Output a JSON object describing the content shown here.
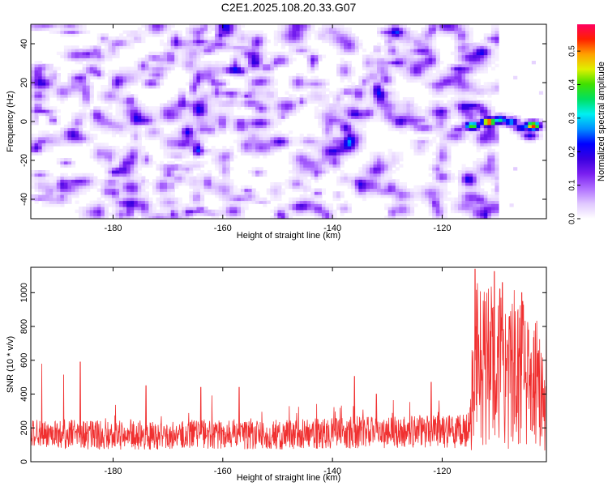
{
  "title": "C2E1.2025.108.20.33.G07",
  "chart_data": [
    {
      "type": "heatmap",
      "xlabel": "Height of straight line (km)",
      "ylabel": "Frequency (Hz)",
      "colorbar_label": "Normalized spectral amplitude",
      "xlim": [
        -195,
        -101
      ],
      "ylim": [
        -50,
        50
      ],
      "xticks": [
        -180,
        -160,
        -140,
        -120
      ],
      "yticks": [
        -40,
        -20,
        0,
        20,
        40
      ],
      "colorbar_range": [
        0.0,
        0.58
      ],
      "colorbar_ticks": [
        "0.0",
        "0.1",
        "0.2",
        "0.3",
        "0.4",
        "0.5"
      ],
      "colorscale": [
        "#ffffff",
        "#e0c8ff",
        "#b070ff",
        "#7a1ff0",
        "#3a00e0",
        "#0000ff",
        "#0090ff",
        "#00f0f0",
        "#00e060",
        "#40e000",
        "#e0f000",
        "#ffa000",
        "#ff2000",
        "#ff0060"
      ],
      "data_extent_x": [
        -195,
        -112
      ],
      "hotspots": [
        {
          "x": -114.5,
          "y": -2,
          "value": 0.42
        },
        {
          "x": -111.5,
          "y": 0,
          "value": 0.58
        },
        {
          "x": -109.5,
          "y": 1,
          "value": 0.35
        },
        {
          "x": -107.5,
          "y": 0,
          "value": 0.3
        },
        {
          "x": -105.5,
          "y": -3,
          "value": 0.25
        },
        {
          "x": -103.5,
          "y": -2,
          "value": 0.55
        },
        {
          "x": -104,
          "y": -7,
          "value": 0.2
        },
        {
          "x": -117,
          "y": -4,
          "value": 0.14
        },
        {
          "x": -120,
          "y": 3,
          "value": 0.12
        },
        {
          "x": -124,
          "y": 1,
          "value": 0.1
        },
        {
          "x": -173,
          "y": 20,
          "value": 0.13
        },
        {
          "x": -152,
          "y": 28,
          "value": 0.11
        },
        {
          "x": -193,
          "y": -10,
          "value": 0.12
        }
      ]
    },
    {
      "type": "line",
      "xlabel": "Height of straight line (km)",
      "ylabel": "SNR (10 * v/v)",
      "xlim": [
        -195,
        -101
      ],
      "ylim": [
        0,
        1150
      ],
      "xticks": [
        -180,
        -160,
        -140,
        -120
      ],
      "yticks": [
        0,
        200,
        400,
        600,
        800,
        1000
      ],
      "line_color": "#f03030",
      "series": [
        {
          "x": [
            -195,
            -190,
            -185,
            -180,
            -175,
            -170,
            -165,
            -160,
            -155,
            -150,
            -145,
            -140,
            -135,
            -130,
            -125,
            -120,
            -117,
            -115,
            -114,
            -113,
            -112,
            -111,
            -110,
            -109,
            -108,
            -107,
            -106,
            -105,
            -104,
            -103,
            -102,
            -101
          ],
          "y": [
            160,
            165,
            160,
            155,
            160,
            150,
            165,
            160,
            155,
            160,
            165,
            170,
            175,
            170,
            180,
            175,
            180,
            190,
            600,
            620,
            560,
            620,
            520,
            600,
            480,
            560,
            500,
            520,
            420,
            480,
            380,
            450
          ],
          "noise_band_mean": [
            160,
            165,
            160,
            155,
            160,
            150,
            165,
            160,
            155,
            160,
            165,
            170,
            175,
            170,
            180,
            175,
            180,
            190,
            600,
            620,
            560,
            620,
            520,
            600,
            480,
            560,
            500,
            520,
            420,
            480,
            380,
            450
          ],
          "peaks": [
            {
              "x": -193,
              "y": 580
            },
            {
              "x": -186,
              "y": 590
            },
            {
              "x": -189,
              "y": 515
            },
            {
              "x": -174,
              "y": 450
            },
            {
              "x": -164,
              "y": 440
            },
            {
              "x": -157,
              "y": 440
            },
            {
              "x": -136,
              "y": 505
            },
            {
              "x": -132,
              "y": 400
            },
            {
              "x": -122,
              "y": 470
            },
            {
              "x": -114,
              "y": 1140
            },
            {
              "x": -110.5,
              "y": 1125
            },
            {
              "x": -109,
              "y": 1060
            },
            {
              "x": -105.5,
              "y": 1000
            },
            {
              "x": -103,
              "y": 820
            },
            {
              "x": -101,
              "y": 910
            }
          ]
        }
      ]
    }
  ]
}
